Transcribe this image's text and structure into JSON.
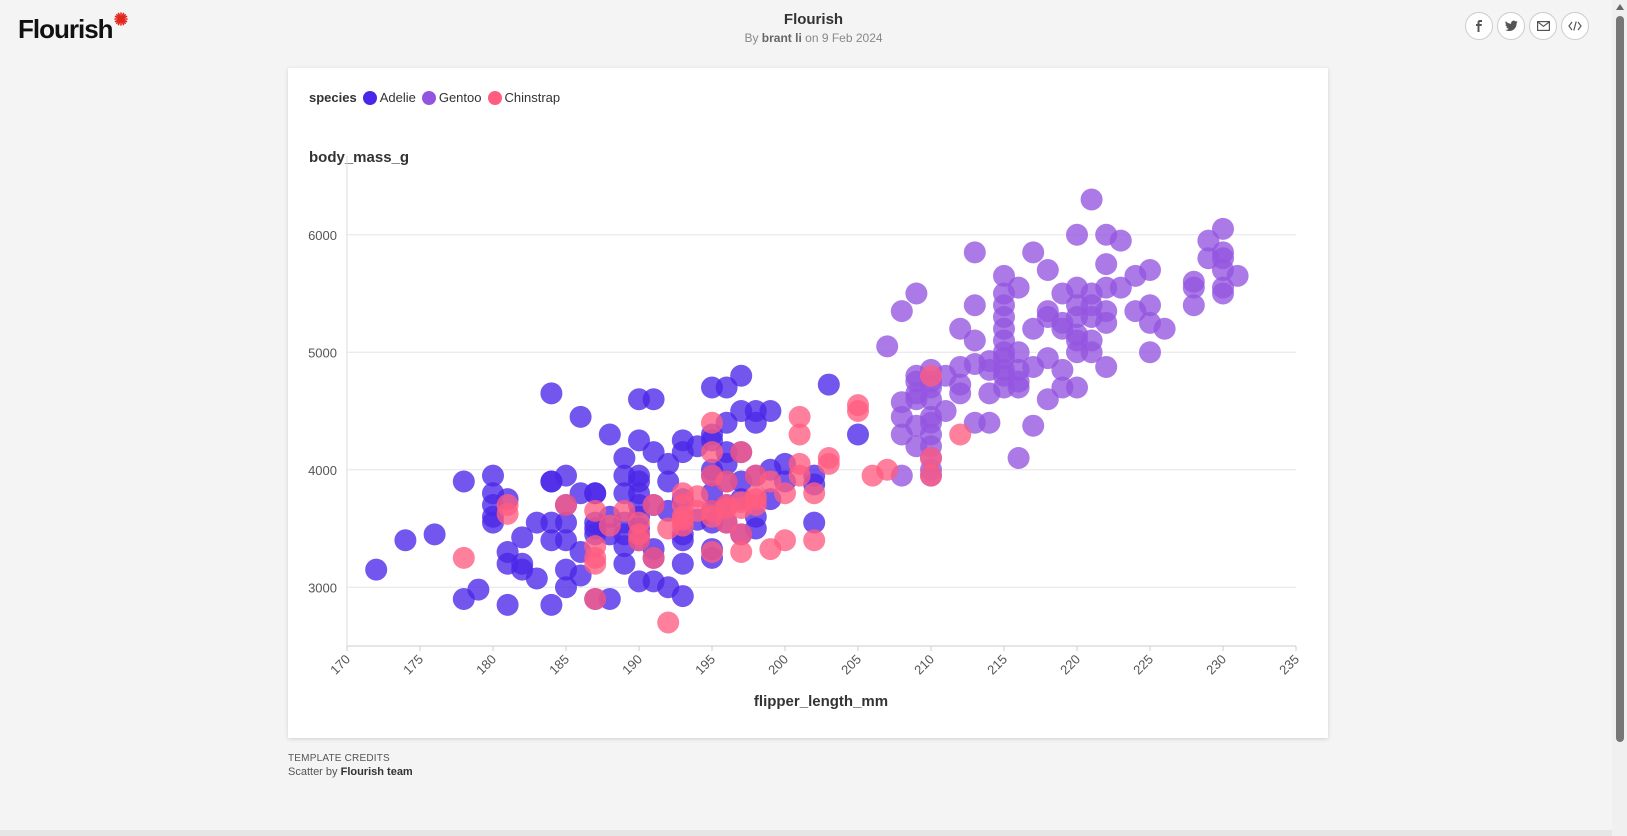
{
  "header": {
    "logo_text": "Flourish",
    "title": "Flourish",
    "by_prefix": "By",
    "author": "brant li",
    "date_text": "on 9 Feb 2024"
  },
  "share_buttons": [
    {
      "icon": "facebook-icon"
    },
    {
      "icon": "twitter-icon"
    },
    {
      "icon": "email-icon"
    },
    {
      "icon": "embed-code-icon"
    }
  ],
  "legend": {
    "title": "species",
    "items": [
      {
        "label": "Adelie",
        "color": "#4a26e8"
      },
      {
        "label": "Gentoo",
        "color": "#9355e0"
      },
      {
        "label": "Chinstrap",
        "color": "#ff5c80"
      }
    ]
  },
  "credits": {
    "heading": "Template credits",
    "line_prefix": "Scatter by",
    "line_author": "Flourish team"
  },
  "chart_data": {
    "type": "scatter",
    "xlabel": "flipper_length_mm",
    "ylabel": "body_mass_g",
    "xlim": [
      170,
      235
    ],
    "ylim": [
      2500,
      6500
    ],
    "xticks": [
      170,
      175,
      180,
      185,
      190,
      195,
      200,
      205,
      210,
      215,
      220,
      225,
      230,
      235
    ],
    "yticks": [
      3000,
      4000,
      5000,
      6000
    ],
    "grid": true,
    "legend_position": "top-left",
    "series": [
      {
        "name": "Adelie",
        "color": "#4a26e8",
        "points": [
          [
            172,
            3150
          ],
          [
            174,
            3400
          ],
          [
            176,
            3450
          ],
          [
            178,
            3900
          ],
          [
            178,
            2900
          ],
          [
            179,
            2980
          ],
          [
            180,
            3950
          ],
          [
            180,
            3600
          ],
          [
            180,
            3700
          ],
          [
            180,
            3550
          ],
          [
            180,
            3800
          ],
          [
            181,
            3750
          ],
          [
            181,
            3300
          ],
          [
            181,
            3200
          ],
          [
            181,
            2850
          ],
          [
            182,
            3200
          ],
          [
            182,
            3150
          ],
          [
            182,
            3425
          ],
          [
            183,
            3550
          ],
          [
            183,
            3075
          ],
          [
            184,
            3900
          ],
          [
            184,
            3900
          ],
          [
            184,
            3550
          ],
          [
            184,
            3400
          ],
          [
            184,
            2850
          ],
          [
            184,
            4650
          ],
          [
            185,
            3950
          ],
          [
            185,
            3700
          ],
          [
            185,
            3550
          ],
          [
            185,
            3400
          ],
          [
            185,
            3150
          ],
          [
            185,
            3000
          ],
          [
            186,
            3800
          ],
          [
            186,
            4450
          ],
          [
            186,
            3300
          ],
          [
            186,
            3100
          ],
          [
            187,
            3800
          ],
          [
            187,
            3500
          ],
          [
            187,
            3450
          ],
          [
            187,
            3800
          ],
          [
            187,
            3550
          ],
          [
            187,
            2900
          ],
          [
            188,
            4300
          ],
          [
            188,
            3600
          ],
          [
            188,
            3450
          ],
          [
            188,
            2900
          ],
          [
            189,
            3950
          ],
          [
            189,
            3800
          ],
          [
            189,
            3450
          ],
          [
            189,
            3200
          ],
          [
            189,
            4100
          ],
          [
            189,
            3550
          ],
          [
            189,
            3350
          ],
          [
            190,
            4600
          ],
          [
            190,
            4250
          ],
          [
            190,
            3950
          ],
          [
            190,
            3900
          ],
          [
            190,
            3800
          ],
          [
            190,
            3700
          ],
          [
            190,
            3600
          ],
          [
            190,
            3500
          ],
          [
            190,
            3450
          ],
          [
            190,
            3400
          ],
          [
            190,
            3050
          ],
          [
            191,
            4600
          ],
          [
            191,
            4150
          ],
          [
            191,
            3700
          ],
          [
            191,
            3050
          ],
          [
            191,
            3325
          ],
          [
            191,
            3250
          ],
          [
            192,
            3900
          ],
          [
            192,
            3650
          ],
          [
            192,
            3000
          ],
          [
            192,
            4050
          ],
          [
            193,
            4250
          ],
          [
            193,
            4150
          ],
          [
            193,
            3750
          ],
          [
            193,
            3450
          ],
          [
            193,
            3400
          ],
          [
            193,
            3200
          ],
          [
            193,
            2925
          ],
          [
            194,
            4200
          ],
          [
            194,
            3575
          ],
          [
            195,
            4700
          ],
          [
            195,
            4300
          ],
          [
            195,
            4250
          ],
          [
            195,
            4000
          ],
          [
            195,
            3950
          ],
          [
            195,
            3800
          ],
          [
            195,
            3650
          ],
          [
            195,
            3550
          ],
          [
            195,
            3325
          ],
          [
            195,
            3250
          ],
          [
            196,
            4700
          ],
          [
            196,
            4400
          ],
          [
            196,
            4050
          ],
          [
            196,
            3900
          ],
          [
            196,
            3700
          ],
          [
            196,
            3550
          ],
          [
            196,
            4150
          ],
          [
            197,
            4800
          ],
          [
            197,
            4500
          ],
          [
            197,
            4150
          ],
          [
            197,
            3900
          ],
          [
            197,
            3750
          ],
          [
            197,
            3450
          ],
          [
            198,
            4400
          ],
          [
            198,
            4500
          ],
          [
            198,
            3950
          ],
          [
            198,
            3600
          ],
          [
            198,
            3500
          ],
          [
            199,
            4500
          ],
          [
            199,
            4000
          ],
          [
            199,
            3750
          ],
          [
            200,
            4050
          ],
          [
            200,
            3900
          ],
          [
            202,
            3950
          ],
          [
            202,
            3550
          ],
          [
            202,
            3875
          ],
          [
            203,
            4725
          ],
          [
            205,
            4300
          ]
        ]
      },
      {
        "name": "Gentoo",
        "color": "#9355e0",
        "points": [
          [
            207,
            5050
          ],
          [
            208,
            5350
          ],
          [
            208,
            4300
          ],
          [
            208,
            3950
          ],
          [
            208,
            4575
          ],
          [
            208,
            4450
          ],
          [
            209,
            5500
          ],
          [
            209,
            4800
          ],
          [
            209,
            4600
          ],
          [
            209,
            4650
          ],
          [
            209,
            4750
          ],
          [
            209,
            4375
          ],
          [
            209,
            4200
          ],
          [
            210,
            4850
          ],
          [
            210,
            4750
          ],
          [
            210,
            4700
          ],
          [
            210,
            4600
          ],
          [
            210,
            4450
          ],
          [
            210,
            4400
          ],
          [
            210,
            4300
          ],
          [
            210,
            4200
          ],
          [
            210,
            4100
          ],
          [
            210,
            4000
          ],
          [
            210,
            3950
          ],
          [
            211,
            4800
          ],
          [
            211,
            4500
          ],
          [
            212,
            5200
          ],
          [
            212,
            4875
          ],
          [
            212,
            4725
          ],
          [
            212,
            4650
          ],
          [
            213,
            5850
          ],
          [
            213,
            5400
          ],
          [
            213,
            5100
          ],
          [
            213,
            4900
          ],
          [
            213,
            4400
          ],
          [
            214,
            4850
          ],
          [
            214,
            4650
          ],
          [
            214,
            4400
          ],
          [
            214,
            4925
          ],
          [
            215,
            5650
          ],
          [
            215,
            5500
          ],
          [
            215,
            5400
          ],
          [
            215,
            5300
          ],
          [
            215,
            5200
          ],
          [
            215,
            5100
          ],
          [
            215,
            5000
          ],
          [
            215,
            4950
          ],
          [
            215,
            4850
          ],
          [
            215,
            4800
          ],
          [
            215,
            4700
          ],
          [
            216,
            5550
          ],
          [
            216,
            5000
          ],
          [
            216,
            4850
          ],
          [
            216,
            4750
          ],
          [
            216,
            4700
          ],
          [
            216,
            4100
          ],
          [
            217,
            5850
          ],
          [
            217,
            5200
          ],
          [
            217,
            4875
          ],
          [
            217,
            4375
          ],
          [
            218,
            5700
          ],
          [
            218,
            5300
          ],
          [
            218,
            4950
          ],
          [
            218,
            4600
          ],
          [
            218,
            5350
          ],
          [
            219,
            5500
          ],
          [
            219,
            5250
          ],
          [
            219,
            5200
          ],
          [
            219,
            4850
          ],
          [
            219,
            4700
          ],
          [
            220,
            6000
          ],
          [
            220,
            5550
          ],
          [
            220,
            5400
          ],
          [
            220,
            5300
          ],
          [
            220,
            5150
          ],
          [
            220,
            5100
          ],
          [
            220,
            5000
          ],
          [
            220,
            4700
          ],
          [
            221,
            6300
          ],
          [
            221,
            5500
          ],
          [
            221,
            5400
          ],
          [
            221,
            5300
          ],
          [
            221,
            5100
          ],
          [
            221,
            5000
          ],
          [
            222,
            6000
          ],
          [
            222,
            5750
          ],
          [
            222,
            5550
          ],
          [
            222,
            5350
          ],
          [
            222,
            5250
          ],
          [
            222,
            4875
          ],
          [
            223,
            5950
          ],
          [
            223,
            5550
          ],
          [
            224,
            5650
          ],
          [
            224,
            5350
          ],
          [
            225,
            5700
          ],
          [
            225,
            5400
          ],
          [
            225,
            5250
          ],
          [
            225,
            5000
          ],
          [
            226,
            5200
          ],
          [
            228,
            5600
          ],
          [
            228,
            5550
          ],
          [
            228,
            5400
          ],
          [
            229,
            5950
          ],
          [
            229,
            5800
          ],
          [
            230,
            6050
          ],
          [
            230,
            5850
          ],
          [
            230,
            5800
          ],
          [
            230,
            5700
          ],
          [
            230,
            5550
          ],
          [
            230,
            5500
          ],
          [
            231,
            5650
          ]
        ]
      },
      {
        "name": "Chinstrap",
        "color": "#ff5c80",
        "points": [
          [
            178,
            3250
          ],
          [
            181,
            3700
          ],
          [
            181,
            3625
          ],
          [
            185,
            3700
          ],
          [
            187,
            3650
          ],
          [
            187,
            3350
          ],
          [
            187,
            3250
          ],
          [
            187,
            3200
          ],
          [
            187,
            2900
          ],
          [
            188,
            3525
          ],
          [
            189,
            3650
          ],
          [
            190,
            3450
          ],
          [
            190,
            3400
          ],
          [
            190,
            3550
          ],
          [
            191,
            3700
          ],
          [
            191,
            3250
          ],
          [
            192,
            2700
          ],
          [
            192,
            3500
          ],
          [
            193,
            3800
          ],
          [
            193,
            3700
          ],
          [
            193,
            3600
          ],
          [
            193,
            3525
          ],
          [
            193,
            3575
          ],
          [
            194,
            3775
          ],
          [
            194,
            3650
          ],
          [
            195,
            4400
          ],
          [
            195,
            4150
          ],
          [
            195,
            3950
          ],
          [
            195,
            3650
          ],
          [
            195,
            3600
          ],
          [
            195,
            3300
          ],
          [
            196,
            3550
          ],
          [
            196,
            3700
          ],
          [
            196,
            3675
          ],
          [
            196,
            3900
          ],
          [
            197,
            4150
          ],
          [
            197,
            3725
          ],
          [
            197,
            3675
          ],
          [
            197,
            3450
          ],
          [
            197,
            3300
          ],
          [
            198,
            3775
          ],
          [
            198,
            3700
          ],
          [
            198,
            3950
          ],
          [
            198,
            3750
          ],
          [
            199,
            3900
          ],
          [
            199,
            3325
          ],
          [
            200,
            3800
          ],
          [
            200,
            3400
          ],
          [
            201,
            4450
          ],
          [
            201,
            4300
          ],
          [
            201,
            4050
          ],
          [
            201,
            3950
          ],
          [
            202,
            3800
          ],
          [
            202,
            3400
          ],
          [
            203,
            4100
          ],
          [
            203,
            4050
          ],
          [
            205,
            4550
          ],
          [
            205,
            4500
          ],
          [
            206,
            3950
          ],
          [
            207,
            4000
          ],
          [
            210,
            4800
          ],
          [
            210,
            4100
          ],
          [
            210,
            3950
          ],
          [
            212,
            4300
          ]
        ]
      }
    ]
  }
}
